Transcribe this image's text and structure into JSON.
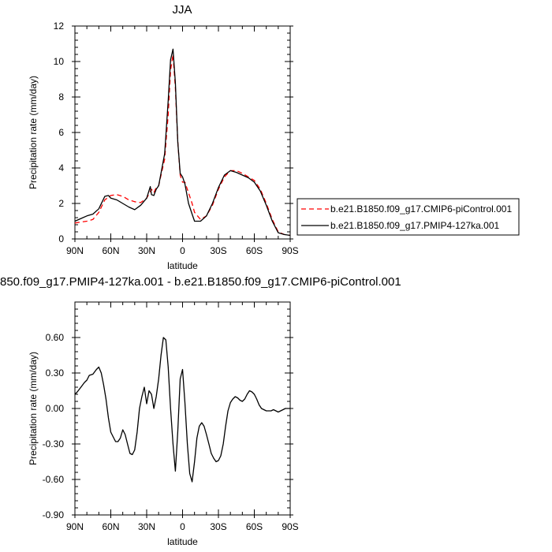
{
  "chart_data": [
    {
      "type": "line",
      "title": "JJA",
      "xlabel": "latitude",
      "ylabel": "Precipitation rate (mm/day)",
      "xlim": [
        90,
        -90
      ],
      "ylim": [
        0,
        12
      ],
      "x_ticks": [
        90,
        60,
        30,
        0,
        -30,
        -60,
        -90
      ],
      "x_tick_labels": [
        "90N",
        "60N",
        "30N",
        "0",
        "30S",
        "60S",
        "90S"
      ],
      "y_ticks": [
        0,
        2,
        4,
        6,
        8,
        10,
        12
      ],
      "y_tick_labels": [
        "0",
        "2",
        "4",
        "6",
        "8",
        "10",
        "12"
      ],
      "legend_position": "right",
      "series": [
        {
          "name": "b.e21.B1850.f09_g17.CMIP6-piControl.001",
          "color": "#ff0000",
          "style": "dashed",
          "x": [
            90,
            85,
            80,
            75,
            70,
            65,
            60,
            55,
            50,
            45,
            40,
            35,
            30,
            26,
            24,
            22,
            20,
            15,
            12,
            10,
            8,
            6,
            4,
            2,
            0,
            -2,
            -5,
            -8,
            -10,
            -15,
            -20,
            -25,
            -30,
            -35,
            -40,
            -45,
            -50,
            -55,
            -60,
            -65,
            -70,
            -75,
            -80,
            -85,
            -90
          ],
          "y": [
            0.9,
            0.95,
            1.0,
            1.1,
            1.5,
            2.2,
            2.45,
            2.5,
            2.4,
            2.2,
            2.1,
            2.05,
            2.3,
            2.8,
            2.6,
            2.9,
            3.0,
            4.5,
            7.0,
            9.5,
            10.4,
            8.5,
            5.5,
            3.6,
            3.2,
            3.2,
            2.6,
            2.0,
            1.5,
            1.1,
            1.3,
            1.9,
            2.8,
            3.5,
            3.85,
            3.85,
            3.7,
            3.5,
            3.3,
            2.8,
            2.0,
            1.1,
            0.4,
            0.25,
            0.2
          ]
        },
        {
          "name": "b.e21.B1850.f09_g17.PMIP4-127ka.001",
          "color": "#000000",
          "style": "solid",
          "x": [
            90,
            85,
            80,
            75,
            70,
            65,
            62,
            60,
            55,
            50,
            45,
            40,
            35,
            30,
            27,
            26,
            24,
            22,
            20,
            15,
            12,
            10,
            8,
            6,
            4,
            2,
            0,
            -2,
            -5,
            -8,
            -10,
            -15,
            -20,
            -25,
            -30,
            -35,
            -40,
            -45,
            -50,
            -55,
            -60,
            -65,
            -70,
            -75,
            -80,
            -85,
            -90
          ],
          "y": [
            1.0,
            1.15,
            1.3,
            1.4,
            1.7,
            2.4,
            2.45,
            2.3,
            2.2,
            2.0,
            1.8,
            1.65,
            1.9,
            2.3,
            2.95,
            2.5,
            2.45,
            2.8,
            3.0,
            4.8,
            7.8,
            10.1,
            10.7,
            8.8,
            5.5,
            3.7,
            3.5,
            3.1,
            2.0,
            1.4,
            1.0,
            1.0,
            1.3,
            2.0,
            2.9,
            3.6,
            3.85,
            3.75,
            3.6,
            3.45,
            3.2,
            2.7,
            1.9,
            1.0,
            0.35,
            0.25,
            0.2
          ]
        }
      ]
    },
    {
      "type": "line",
      "title": "850.f09_g17.PMIP4-127ka.001 - b.e21.B1850.f09_g17.CMIP6-piControl.001",
      "xlabel": "latitude",
      "ylabel": "Precipitation rate (mm/day)",
      "xlim": [
        90,
        -90
      ],
      "ylim": [
        -0.9,
        0.9
      ],
      "x_ticks": [
        90,
        60,
        30,
        0,
        -30,
        -60,
        -90
      ],
      "x_tick_labels": [
        "90N",
        "60N",
        "30N",
        "0",
        "30S",
        "60S",
        "90S"
      ],
      "y_ticks": [
        -0.9,
        -0.6,
        -0.3,
        0,
        0.3,
        0.6
      ],
      "y_tick_labels": [
        "-0.90",
        "-0.60",
        "-0.30",
        "0.00",
        "0.30",
        "0.60"
      ],
      "series": [
        {
          "name": "",
          "color": "#000000",
          "style": "solid",
          "x": [
            90,
            88,
            85,
            82,
            80,
            78,
            75,
            72,
            70,
            68,
            66,
            64,
            62,
            60,
            58,
            56,
            54,
            52,
            50,
            48,
            46,
            44,
            42,
            40,
            38,
            36,
            34,
            32,
            30,
            28,
            26,
            24,
            22,
            20,
            18,
            16,
            14,
            12,
            10,
            8,
            6,
            4,
            2,
            0,
            -2,
            -4,
            -6,
            -8,
            -10,
            -12,
            -14,
            -16,
            -18,
            -20,
            -22,
            -24,
            -26,
            -28,
            -30,
            -32,
            -34,
            -36,
            -38,
            -40,
            -42,
            -44,
            -46,
            -48,
            -50,
            -52,
            -54,
            -56,
            -58,
            -60,
            -62,
            -64,
            -66,
            -68,
            -70,
            -72,
            -74,
            -76,
            -78,
            -80,
            -82,
            -84,
            -86,
            -88,
            -90
          ],
          "y": [
            0.12,
            0.14,
            0.18,
            0.22,
            0.24,
            0.28,
            0.29,
            0.33,
            0.35,
            0.3,
            0.2,
            0.08,
            -0.08,
            -0.2,
            -0.24,
            -0.28,
            -0.28,
            -0.25,
            -0.18,
            -0.22,
            -0.3,
            -0.38,
            -0.39,
            -0.35,
            -0.2,
            0.0,
            0.1,
            0.18,
            0.04,
            0.15,
            0.12,
            0.0,
            0.1,
            0.25,
            0.45,
            0.6,
            0.58,
            0.35,
            0.0,
            -0.3,
            -0.53,
            -0.2,
            0.25,
            0.33,
            0.05,
            -0.3,
            -0.55,
            -0.62,
            -0.45,
            -0.25,
            -0.15,
            -0.12,
            -0.15,
            -0.22,
            -0.3,
            -0.38,
            -0.42,
            -0.45,
            -0.44,
            -0.4,
            -0.3,
            -0.15,
            -0.02,
            0.05,
            0.08,
            0.1,
            0.09,
            0.07,
            0.06,
            0.08,
            0.12,
            0.15,
            0.14,
            0.12,
            0.08,
            0.03,
            0.0,
            -0.01,
            -0.02,
            -0.02,
            -0.02,
            -0.01,
            -0.02,
            -0.03,
            -0.02,
            -0.01,
            0.0,
            0.0,
            0.0
          ]
        }
      ]
    }
  ]
}
